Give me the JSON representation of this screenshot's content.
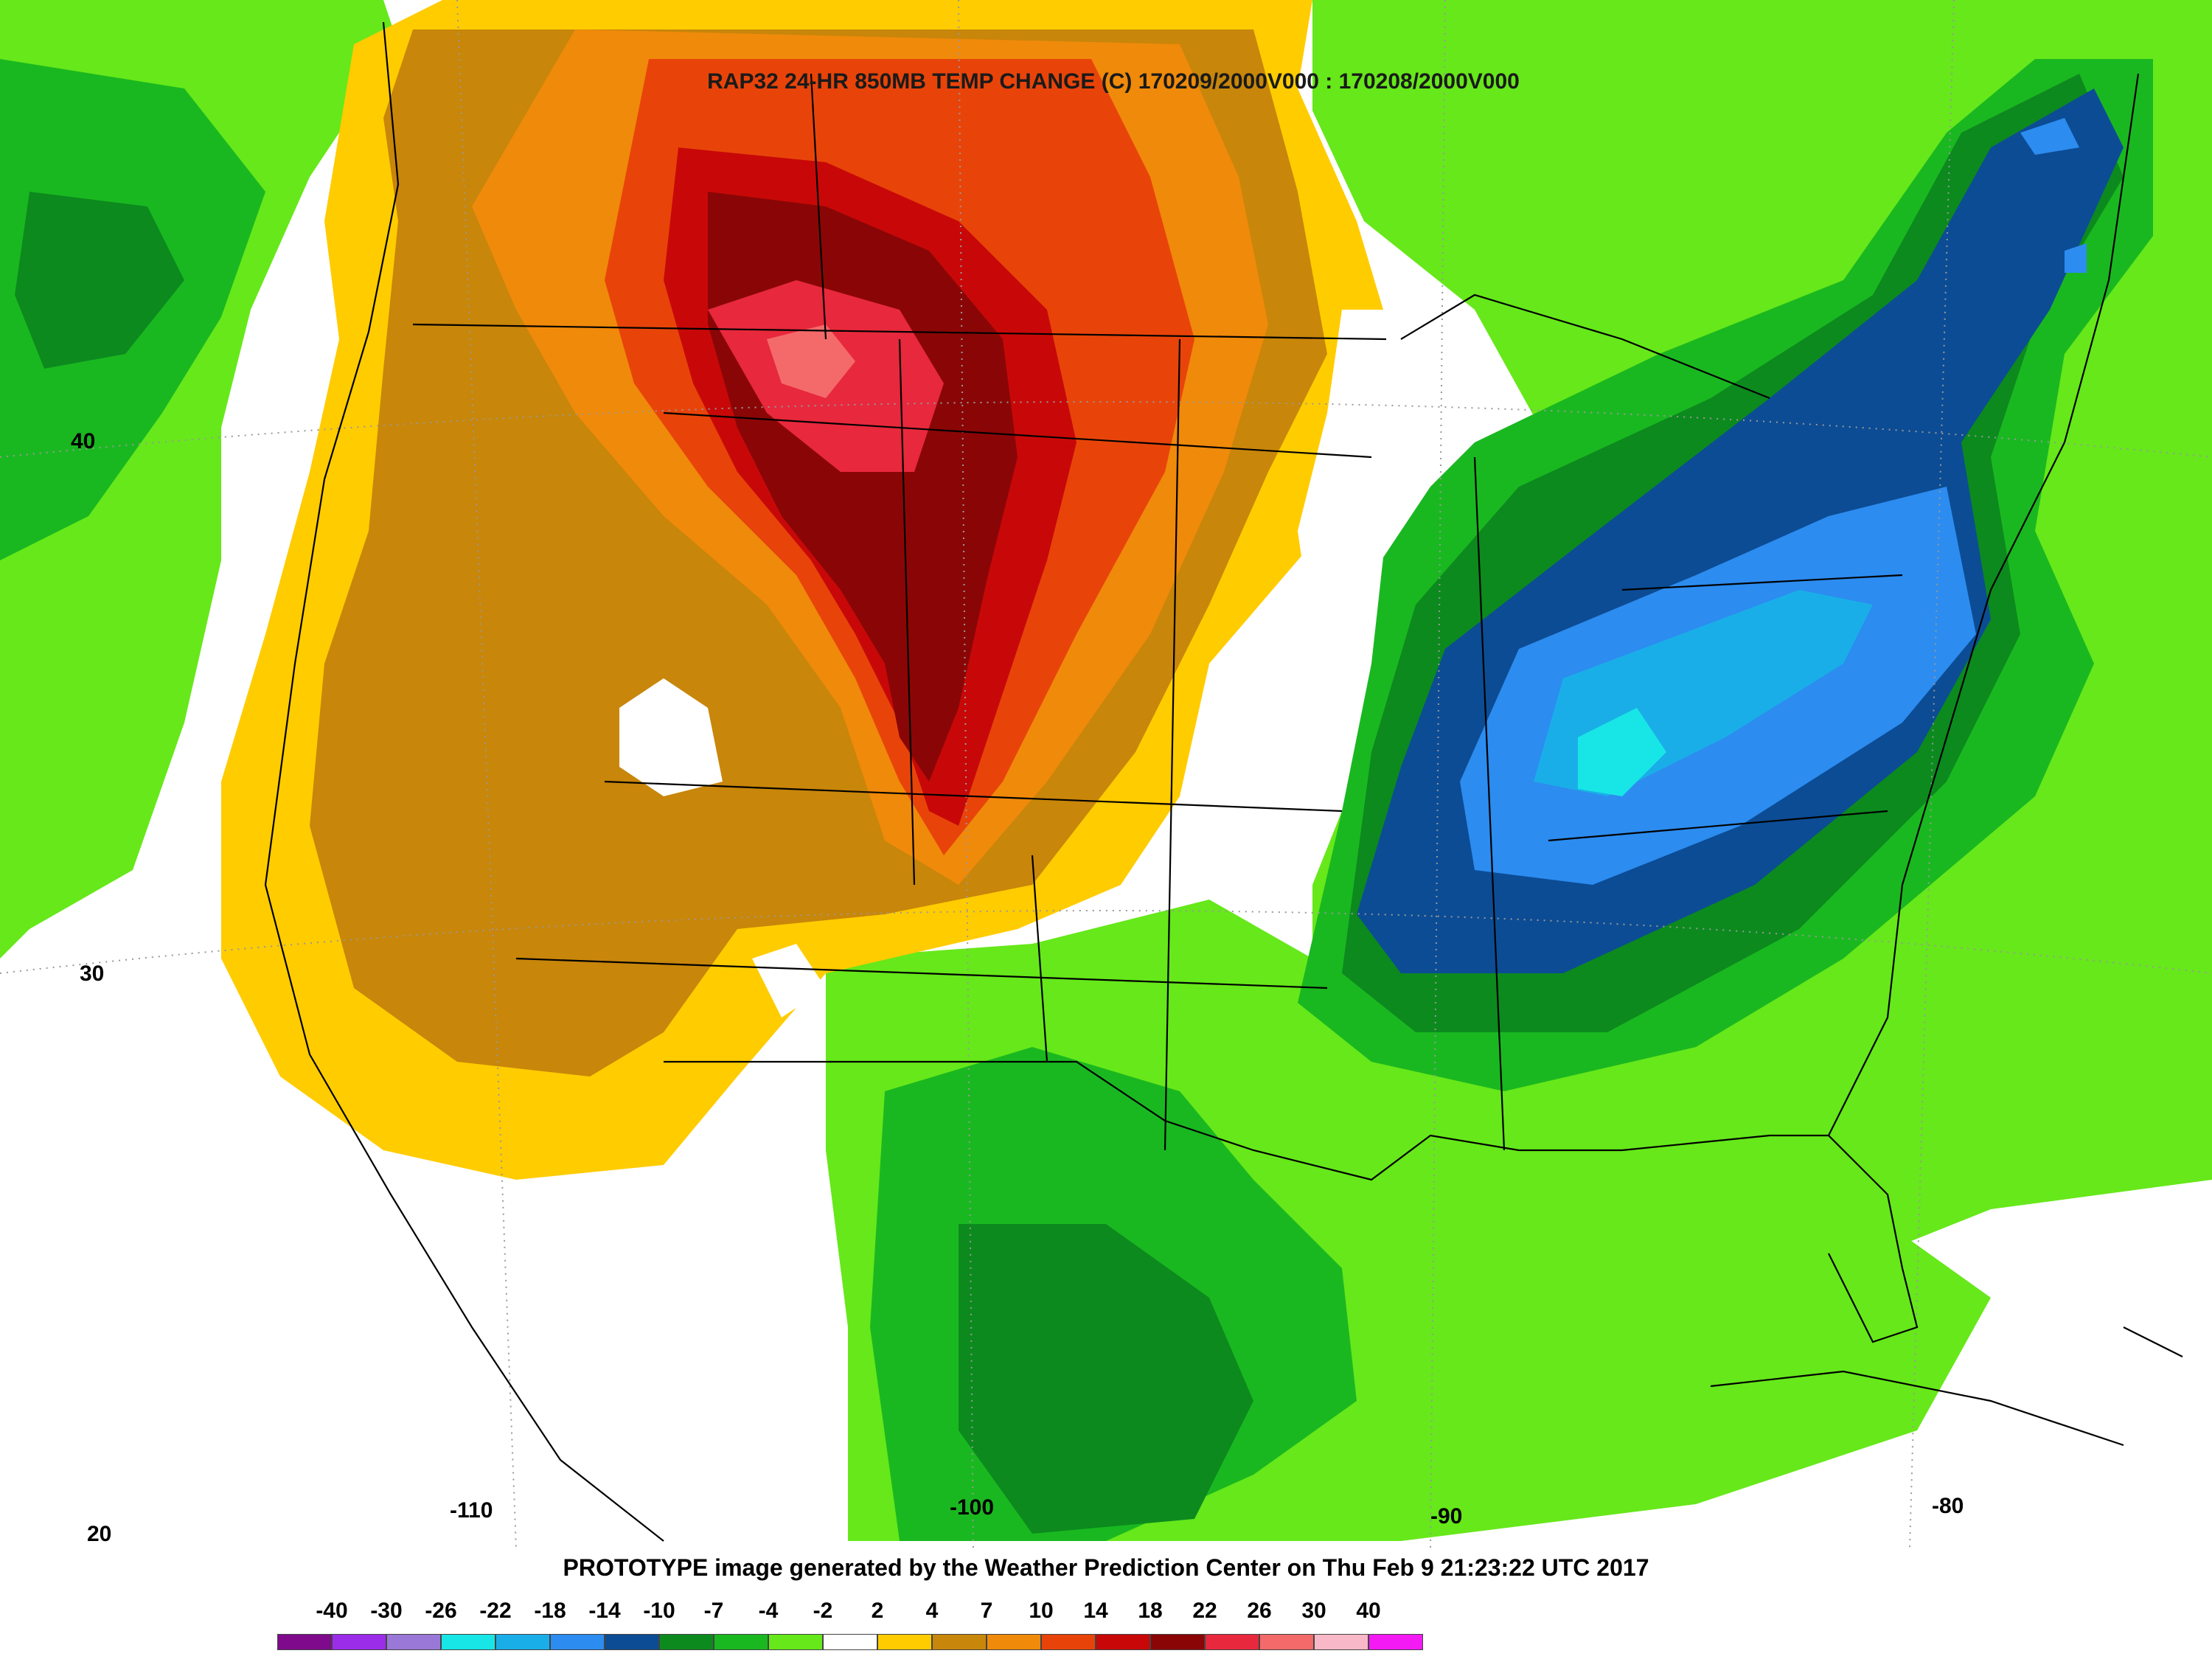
{
  "title": "RAP32 24-HR 850MB TEMP CHANGE (C) 170209/2000V000 : 170208/2000V000",
  "credit": "PROTOTYPE image generated by the Weather Prediction Center on Thu Feb 9 21:23:22 UTC 2017",
  "latitude_labels": [
    "40",
    "30",
    "20"
  ],
  "longitude_labels": [
    "-110",
    "-100",
    "-90",
    "-80"
  ],
  "colorbar": {
    "labels": [
      "-40",
      "-30",
      "-26",
      "-22",
      "-18",
      "-14",
      "-10",
      "-7",
      "-4",
      "-2",
      "2",
      "4",
      "7",
      "10",
      "14",
      "18",
      "22",
      "26",
      "30",
      "40"
    ],
    "colors": [
      "#7f0a8c",
      "#9b2ce8",
      "#9a78d8",
      "#18e6e6",
      "#1aaee8",
      "#2c8cf0",
      "#0c4c94",
      "#0c8a1e",
      "#1ab820",
      "#66e81a",
      "#ffffff",
      "#ffcc00",
      "#c8860a",
      "#f08a0a",
      "#e8440a",
      "#c80808",
      "#8a0606",
      "#e8283c",
      "#f46a6a",
      "#f8b8c8",
      "#f41af4"
    ]
  }
}
